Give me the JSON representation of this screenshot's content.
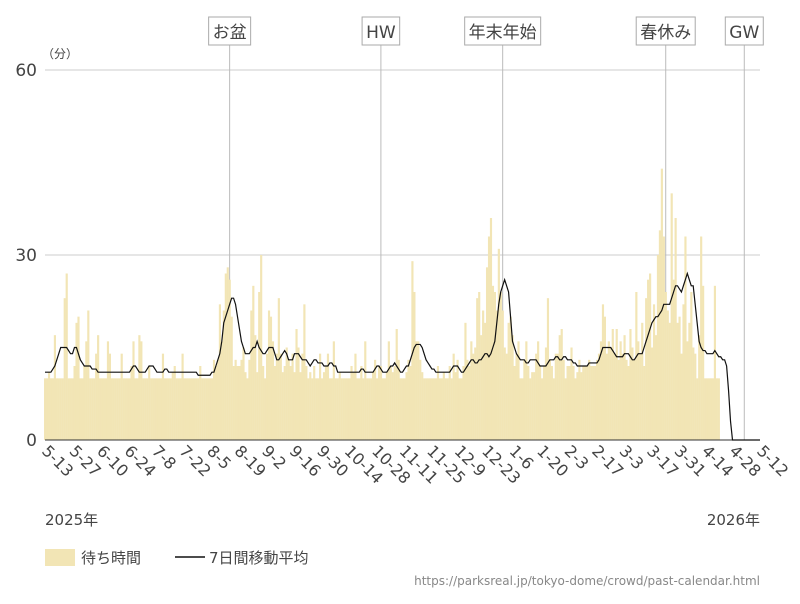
{
  "chart_data": {
    "type": "bar+line",
    "y_unit": "（分）",
    "ylim": [
      0,
      60
    ],
    "yticks": [
      0,
      30,
      60
    ],
    "grid": true,
    "year_labels": [
      "2025年",
      "2026年"
    ],
    "annotations": [
      "お盆",
      "HW",
      "年末年始",
      "春休み",
      "GW"
    ],
    "source": "https://parksreal.jp/tokyo-dome/crowd/past-calendar.html",
    "categories": [
      "5-13",
      null,
      null,
      null,
      null,
      null,
      null,
      null,
      null,
      null,
      null,
      null,
      null,
      null,
      "5-27",
      null,
      null,
      null,
      null,
      null,
      null,
      null,
      null,
      null,
      null,
      null,
      null,
      null,
      "6-10",
      null,
      null,
      null,
      null,
      null,
      null,
      null,
      null,
      null,
      null,
      null,
      null,
      null,
      "6-24",
      null,
      null,
      null,
      null,
      null,
      null,
      null,
      null,
      null,
      null,
      null,
      null,
      null,
      "7-8",
      null,
      null,
      null,
      null,
      null,
      null,
      null,
      null,
      null,
      null,
      null,
      null,
      null,
      "7-22",
      null,
      null,
      null,
      null,
      null,
      null,
      null,
      null,
      null,
      null,
      null,
      null,
      null,
      "8-5",
      null,
      null,
      null,
      null,
      null,
      null,
      null,
      null,
      null,
      null,
      null,
      null,
      null,
      "8-19",
      null,
      null,
      null,
      null,
      null,
      null,
      null,
      null,
      null,
      null,
      null,
      null,
      null,
      "9-2",
      null,
      null,
      null,
      null,
      null,
      null,
      null,
      null,
      null,
      null,
      null,
      null,
      null,
      "9-16",
      null,
      null,
      null,
      null,
      null,
      null,
      null,
      null,
      null,
      null,
      null,
      null,
      null,
      "9-30",
      null,
      null,
      null,
      null,
      null,
      null,
      null,
      null,
      null,
      null,
      null,
      null,
      null,
      "10-14",
      null,
      null,
      null,
      null,
      null,
      null,
      null,
      null,
      null,
      null,
      null,
      null,
      null,
      "10-28",
      null,
      null,
      null,
      null,
      null,
      null,
      null,
      null,
      null,
      null,
      null,
      null,
      null,
      "11-11",
      null,
      null,
      null,
      null,
      null,
      null,
      null,
      null,
      null,
      null,
      null,
      null,
      null,
      "11-25",
      null,
      null,
      null,
      null,
      null,
      null,
      null,
      null,
      null,
      null,
      null,
      null,
      null,
      "12-9",
      null,
      null,
      null,
      null,
      null,
      null,
      null,
      null,
      null,
      null,
      null,
      null,
      null,
      "12-23",
      null,
      null,
      null,
      null,
      null,
      null,
      null,
      null,
      null,
      null,
      null,
      null,
      null,
      "1-6",
      null,
      null,
      null,
      null,
      null,
      null,
      null,
      null,
      null,
      null,
      null,
      null,
      null,
      "1-20",
      null,
      null,
      null,
      null,
      null,
      null,
      null,
      null,
      null,
      null,
      null,
      null,
      null,
      "2-3",
      null,
      null,
      null,
      null,
      null,
      null,
      null,
      null,
      null,
      null,
      null,
      null,
      null,
      "2-17",
      null,
      null,
      null,
      null,
      null,
      null,
      null,
      null,
      null,
      null,
      null,
      null,
      null,
      "3-3",
      null,
      null,
      null,
      null,
      null,
      null,
      null,
      null,
      null,
      null,
      null,
      null,
      null,
      "3-17",
      null,
      null,
      null,
      null,
      null,
      null,
      null,
      null,
      null,
      null,
      null,
      null,
      null,
      "3-31",
      null,
      null,
      null,
      null,
      null,
      null,
      null,
      null,
      null,
      null,
      null,
      null,
      null,
      "4-14",
      null,
      null,
      null,
      null,
      null,
      null,
      null,
      null,
      null,
      null,
      null,
      null,
      null,
      "4-28",
      null,
      null,
      null,
      null,
      null,
      null,
      null,
      null,
      null,
      null,
      null,
      null,
      null,
      "5-12"
    ],
    "series": [
      {
        "name": "待ち時間",
        "type": "bar",
        "color": "#f2e5b5",
        "values": [
          10,
          10,
          11,
          10,
          10,
          17,
          10,
          10,
          10,
          10,
          23,
          27,
          10,
          10,
          10,
          12,
          19,
          20,
          10,
          10,
          12,
          16,
          21,
          10,
          10,
          10,
          14,
          17,
          10,
          10,
          10,
          10,
          16,
          14,
          10,
          10,
          10,
          10,
          10,
          14,
          10,
          10,
          10,
          10,
          12,
          16,
          10,
          10,
          17,
          16,
          10,
          10,
          10,
          12,
          10,
          10,
          10,
          10,
          10,
          10,
          14,
          10,
          10,
          10,
          10,
          11,
          12,
          10,
          10,
          10,
          14,
          10,
          10,
          10,
          10,
          10,
          10,
          10,
          10,
          12,
          10,
          10,
          10,
          10,
          10,
          10,
          13,
          12,
          13,
          22,
          16,
          21,
          27,
          28,
          26,
          20,
          12,
          13,
          12,
          12,
          13,
          15,
          11,
          10,
          13,
          21,
          25,
          17,
          11,
          24,
          30,
          12,
          10,
          14,
          21,
          20,
          16,
          12,
          14,
          23,
          14,
          11,
          12,
          15,
          13,
          12,
          14,
          11,
          18,
          15,
          11,
          14,
          22,
          12,
          10,
          11,
          10,
          12,
          10,
          10,
          14,
          10,
          11,
          12,
          14,
          10,
          10,
          16,
          10,
          10,
          11,
          10,
          10,
          10,
          10,
          10,
          12,
          11,
          14,
          10,
          10,
          12,
          10,
          16,
          10,
          10,
          10,
          11,
          13,
          10,
          12,
          12,
          10,
          10,
          11,
          16,
          12,
          11,
          12,
          18,
          13,
          10,
          10,
          10,
          11,
          13,
          12,
          29,
          24,
          16,
          16,
          13,
          11,
          10,
          10,
          10,
          10,
          10,
          10,
          10,
          12,
          10,
          10,
          11,
          10,
          10,
          12,
          10,
          14,
          11,
          13,
          10,
          10,
          12,
          19,
          13,
          12,
          16,
          14,
          15,
          23,
          24,
          17,
          21,
          19,
          28,
          33,
          36,
          25,
          24,
          21,
          31,
          24,
          21,
          15,
          14,
          19,
          20,
          17,
          12,
          14,
          16,
          10,
          10,
          13,
          16,
          12,
          10,
          11,
          11,
          14,
          16,
          12,
          10,
          12,
          15,
          23,
          13,
          12,
          10,
          14,
          14,
          17,
          18,
          13,
          10,
          12,
          12,
          15,
          12,
          10,
          11,
          13,
          11,
          12,
          12,
          12,
          13,
          12,
          12,
          12,
          13,
          14,
          16,
          22,
          20,
          14,
          16,
          15,
          18,
          14,
          18,
          13,
          16,
          14,
          17,
          13,
          12,
          18,
          15,
          13,
          24,
          16,
          14,
          19,
          12,
          23,
          26,
          27,
          15,
          22,
          17,
          30,
          34,
          44,
          33,
          24,
          21,
          19,
          40,
          26,
          36,
          19,
          20,
          14,
          22,
          33,
          16,
          19,
          24,
          15,
          14,
          10,
          17,
          33,
          25,
          10,
          10,
          10,
          10,
          10,
          25,
          10,
          10,
          null,
          null,
          null,
          null,
          null,
          null,
          null,
          null,
          null,
          null,
          null,
          null,
          null,
          null,
          null,
          null,
          null,
          null,
          null,
          null,
          null
        ]
      },
      {
        "name": "7日間移動平均",
        "type": "line",
        "color": "#111111",
        "values": [
          11,
          11,
          11,
          11,
          11.5,
          12,
          13,
          14,
          15,
          15,
          15,
          15,
          14.5,
          14,
          14,
          15,
          15,
          14,
          13,
          12.5,
          12,
          12,
          12,
          12,
          11.5,
          11.5,
          11.5,
          11,
          11,
          11,
          11,
          11,
          11,
          11,
          11,
          11,
          11,
          11,
          11,
          11,
          11,
          11,
          11,
          11,
          11.5,
          12,
          12,
          11.5,
          11,
          11,
          11,
          11,
          11.5,
          12,
          12,
          12,
          11.5,
          11,
          11,
          11,
          11,
          11.5,
          11.5,
          11,
          11,
          11,
          11,
          11,
          11,
          11,
          11,
          11,
          11,
          11,
          11,
          11,
          11,
          11,
          10.5,
          10.5,
          10.5,
          10.5,
          10.5,
          10.5,
          10.5,
          11,
          11,
          12,
          13,
          14,
          16,
          19,
          20,
          21,
          22,
          23,
          23,
          22,
          20,
          18,
          16,
          15,
          14,
          14,
          14,
          14.5,
          15,
          15,
          16,
          15,
          14.5,
          14,
          14,
          14.5,
          15,
          15,
          15,
          14,
          13,
          13,
          13.5,
          14,
          14.5,
          14,
          13,
          13,
          13,
          14,
          14,
          14,
          13.5,
          13,
          13,
          13,
          12.5,
          12,
          12.5,
          13,
          13,
          12.5,
          12.5,
          12.5,
          12,
          12,
          12,
          12.5,
          12.5,
          12,
          12,
          11,
          11,
          11,
          11,
          11,
          11,
          11,
          11,
          11,
          11,
          11,
          11,
          11.5,
          11.5,
          11,
          11,
          11,
          11,
          11,
          11.5,
          12,
          12,
          11.5,
          11,
          11,
          11,
          11.5,
          12,
          12,
          12.5,
          12,
          11.5,
          11,
          11,
          11.5,
          12,
          12,
          13,
          14,
          15,
          15.5,
          15.5,
          15.5,
          15,
          14,
          13,
          12.5,
          12,
          11.5,
          11.5,
          11,
          11,
          11,
          11,
          11,
          11,
          11,
          11,
          11.5,
          12,
          12,
          12,
          11.5,
          11,
          11,
          11.5,
          12,
          12.5,
          13,
          13,
          12.5,
          12.5,
          13,
          13,
          13.5,
          14,
          14,
          13.5,
          14,
          15,
          16,
          19,
          22,
          24,
          25,
          26,
          25,
          24,
          20,
          16,
          15,
          14,
          13.5,
          13,
          13,
          13,
          12.5,
          12.5,
          13,
          13,
          13,
          13,
          12.5,
          12,
          12,
          12,
          12,
          12.5,
          13,
          13,
          13,
          13.5,
          13.5,
          13,
          13,
          13.5,
          13.5,
          13,
          13,
          13,
          12.5,
          12.5,
          12,
          12,
          12,
          12,
          12,
          12,
          12.5,
          12.5,
          12.5,
          12.5,
          12.5,
          13,
          14,
          15,
          15,
          15,
          15,
          15,
          14.5,
          14,
          13.5,
          13.5,
          13.5,
          13.5,
          14,
          14,
          14,
          13.5,
          13,
          13,
          13.5,
          14,
          14,
          14,
          15,
          16,
          17,
          18,
          19,
          19.5,
          20,
          20,
          20.5,
          21,
          22,
          22,
          22,
          22,
          23,
          24,
          25,
          25,
          24.5,
          24,
          25,
          26,
          27,
          26,
          25,
          25,
          22,
          19,
          16,
          15,
          14.5,
          14.5,
          14,
          14,
          14,
          14,
          14.5,
          14,
          13.5,
          13.5,
          13,
          13,
          12,
          8,
          3,
          0,
          0,
          0,
          0,
          0,
          0,
          0,
          0,
          0,
          0,
          0,
          0,
          0,
          0,
          0
        ]
      }
    ]
  }
}
